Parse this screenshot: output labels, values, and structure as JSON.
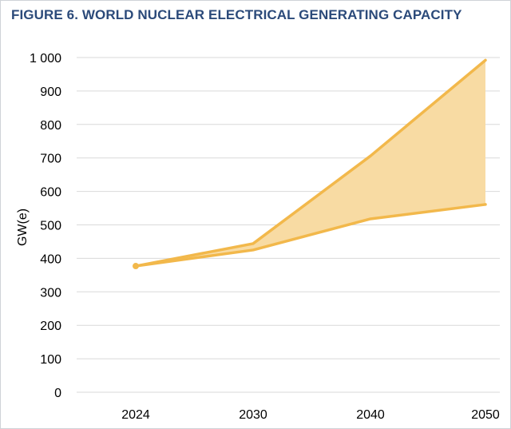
{
  "chart_data": {
    "type": "area",
    "title": "FIGURE 6. WORLD NUCLEAR ELECTRICAL GENERATING CAPACITY",
    "xlabel": "",
    "ylabel": "GW(e)",
    "categories": [
      "2024",
      "2030",
      "2040",
      "2050"
    ],
    "series": [
      {
        "values": [
          377,
          444,
          706,
          992
        ]
      },
      {
        "values": [
          377,
          425,
          518,
          561
        ]
      }
    ],
    "ylim": [
      0,
      1000
    ],
    "yticks": [
      0,
      100,
      200,
      300,
      400,
      500,
      600,
      700,
      800,
      900,
      1000
    ],
    "ytick_labels": [
      "0",
      "100",
      "200",
      "300",
      "400",
      "500",
      "600",
      "700",
      "800",
      "900",
      "1 000"
    ],
    "grid": true,
    "colors": {
      "line": "#f2b84b",
      "fill": "#f8dba3",
      "grid": "#d9d9d9",
      "title": "#2b4a7a"
    }
  }
}
